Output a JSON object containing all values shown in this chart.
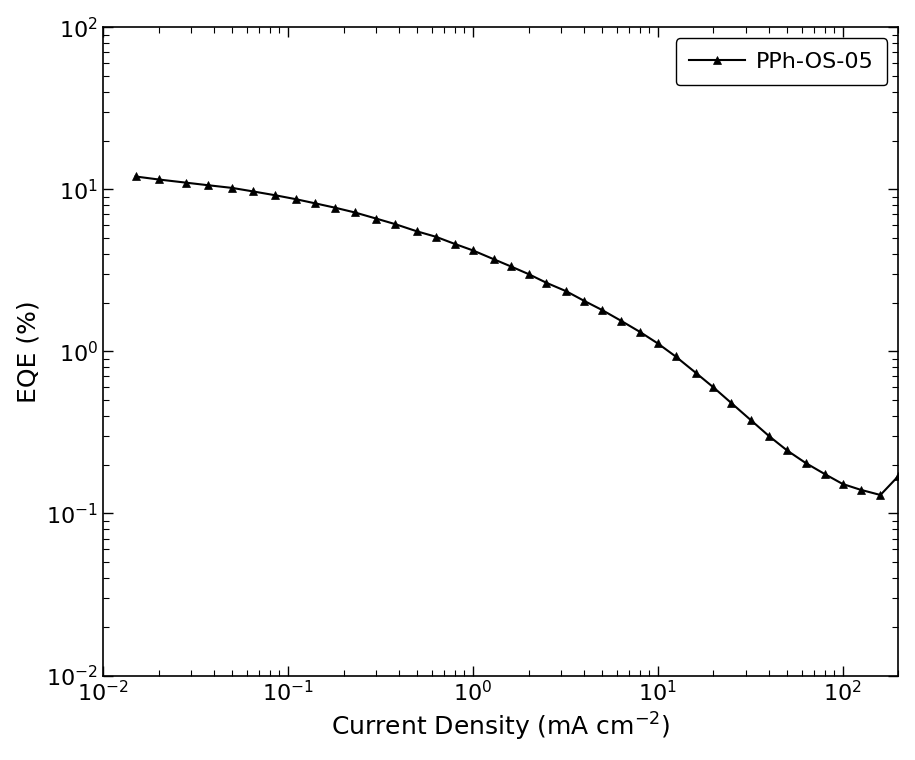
{
  "title": "",
  "xlabel": "Current Density (mA cm$^{-2}$)",
  "ylabel": "EQE (%)",
  "legend_label": "PPh-OS-05",
  "xlim": [
    0.01,
    200
  ],
  "ylim": [
    0.01,
    100
  ],
  "line_color": "black",
  "marker": "^",
  "marker_color": "black",
  "marker_size": 6,
  "linewidth": 1.5,
  "background_color": "white",
  "x_data": [
    0.015,
    0.02,
    0.028,
    0.037,
    0.05,
    0.065,
    0.085,
    0.11,
    0.14,
    0.18,
    0.23,
    0.3,
    0.38,
    0.5,
    0.63,
    0.8,
    1.0,
    1.3,
    1.6,
    2.0,
    2.5,
    3.2,
    4.0,
    5.0,
    6.3,
    8.0,
    10.0,
    12.5,
    16.0,
    20.0,
    25.0,
    32.0,
    40.0,
    50.0,
    63.0,
    80.0,
    100.0,
    125.0,
    160.0,
    200.0
  ],
  "y_data": [
    12.0,
    11.5,
    11.0,
    10.6,
    10.2,
    9.7,
    9.2,
    8.7,
    8.2,
    7.7,
    7.2,
    6.6,
    6.1,
    5.5,
    5.1,
    4.6,
    4.2,
    3.7,
    3.35,
    3.0,
    2.65,
    2.35,
    2.05,
    1.8,
    1.55,
    1.32,
    1.12,
    0.93,
    0.74,
    0.6,
    0.48,
    0.375,
    0.3,
    0.245,
    0.205,
    0.175,
    0.152,
    0.14,
    0.13,
    0.17
  ],
  "tick_label_fontsize": 16,
  "axis_label_fontsize": 18,
  "legend_fontsize": 16
}
